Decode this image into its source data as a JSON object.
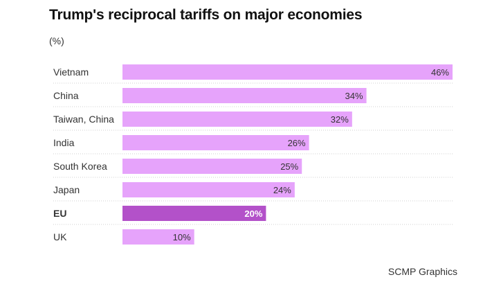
{
  "title": "Trump's reciprocal tariffs on major economies",
  "unit_label": "(%)",
  "source": "SCMP Graphics",
  "colors": {
    "bar": "#e6a3fb",
    "highlight_bar": "#b351c9",
    "grid": "#cfcfcf"
  },
  "chart_data": {
    "type": "bar",
    "orientation": "horizontal",
    "title": "Trump's reciprocal tariffs on major economies",
    "ylabel": "(%)",
    "categories": [
      "Vietnam",
      "China",
      "Taiwan, China",
      "India",
      "South Korea",
      "Japan",
      "EU",
      "UK"
    ],
    "values": [
      46,
      34,
      32,
      26,
      25,
      24,
      20,
      10
    ],
    "data_labels": [
      "46%",
      "34%",
      "32%",
      "26%",
      "25%",
      "24%",
      "20%",
      "10%"
    ],
    "highlight": [
      "EU"
    ],
    "xlim": [
      0,
      46
    ],
    "grid": false
  }
}
